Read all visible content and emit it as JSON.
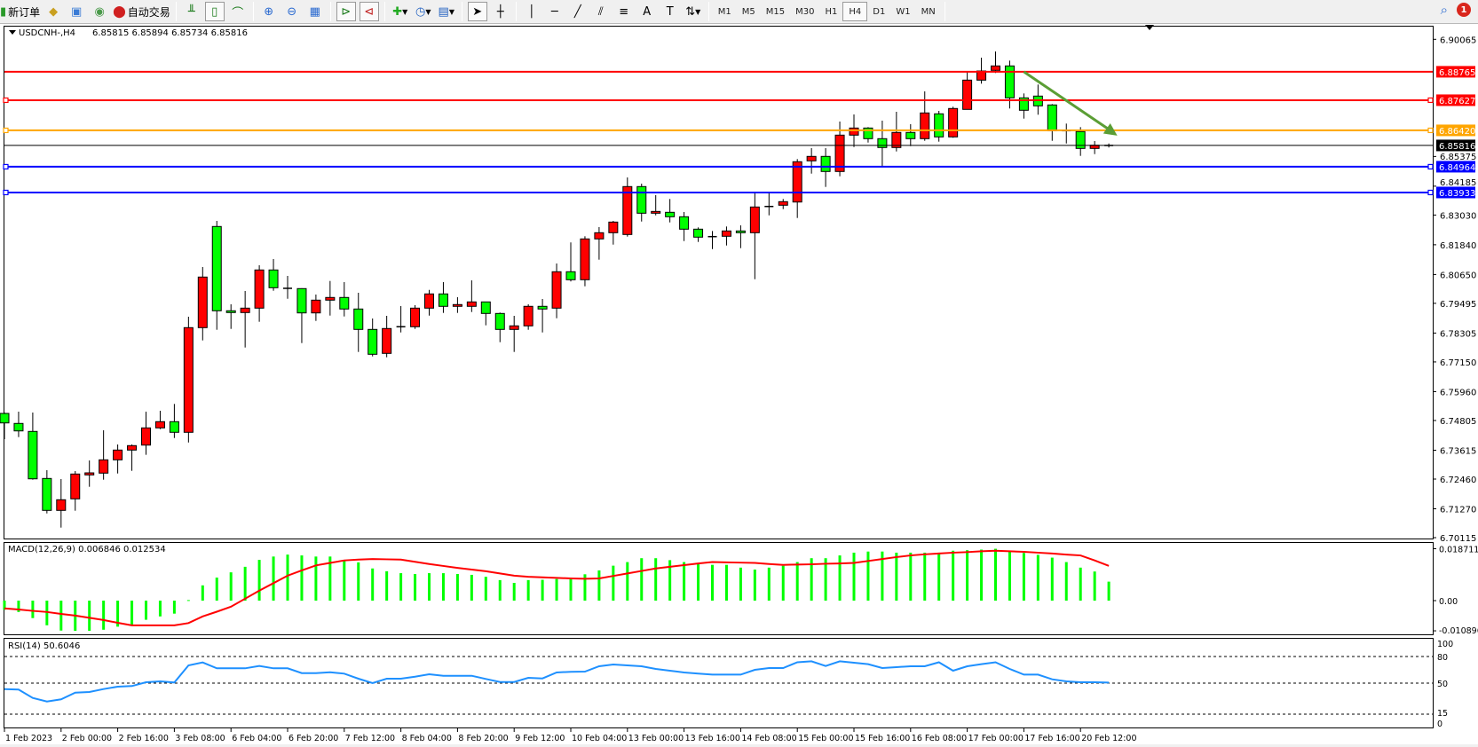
{
  "toolbar": {
    "new_order_label": "新订单",
    "auto_trading_label": "自动交易",
    "timeframes": [
      "M1",
      "M5",
      "M15",
      "M30",
      "H1",
      "H4",
      "D1",
      "W1",
      "MN"
    ],
    "active_timeframe": "H4",
    "notification_count": "1"
  },
  "chart_header": {
    "symbol": "USDCNH-,H4",
    "ohlc_text": "6.85815 6.85894 6.85734 6.85816"
  },
  "colors": {
    "bull_candle": "#ff0000",
    "bear_candle": "#00ff00",
    "macd_histogram": "#00ff00",
    "macd_signal": "#ff0000",
    "rsi_line": "#1e90ff",
    "trend_arrow": "#5b9e35"
  },
  "chart_data": [
    {
      "type": "candlestick",
      "title": "USDCNH-,H4",
      "ylim": [
        6.70115,
        6.90065
      ],
      "price_ticks": [
        "6.90065",
        "6.85375",
        "6.84185",
        "6.83030",
        "6.81840",
        "6.80650",
        "6.79495",
        "6.78305",
        "6.77150",
        "6.75960",
        "6.74805",
        "6.73615",
        "6.72460",
        "6.71270",
        "6.70115"
      ],
      "time_labels": [
        {
          "bar": 0,
          "label": "1 Feb 2023"
        },
        {
          "bar": 4,
          "label": "2 Feb 00:00"
        },
        {
          "bar": 8,
          "label": "2 Feb 16:00"
        },
        {
          "bar": 12,
          "label": "3 Feb 08:00"
        },
        {
          "bar": 16,
          "label": "6 Feb 04:00"
        },
        {
          "bar": 20,
          "label": "6 Feb 20:00"
        },
        {
          "bar": 24,
          "label": "7 Feb 12:00"
        },
        {
          "bar": 28,
          "label": "8 Feb 04:00"
        },
        {
          "bar": 32,
          "label": "8 Feb 20:00"
        },
        {
          "bar": 36,
          "label": "9 Feb 12:00"
        },
        {
          "bar": 40,
          "label": "10 Feb 04:00"
        },
        {
          "bar": 44,
          "label": "13 Feb 00:00"
        },
        {
          "bar": 48,
          "label": "13 Feb 16:00"
        },
        {
          "bar": 52,
          "label": "14 Feb 08:00"
        },
        {
          "bar": 56,
          "label": "15 Feb 00:00"
        },
        {
          "bar": 60,
          "label": "15 Feb 16:00"
        },
        {
          "bar": 64,
          "label": "16 Feb 08:00"
        },
        {
          "bar": 68,
          "label": "17 Feb 00:00"
        },
        {
          "bar": 72,
          "label": "17 Feb 16:00"
        },
        {
          "bar": 76,
          "label": "20 Feb 12:00"
        }
      ],
      "ohlc": [
        [
          6.75088,
          6.75124,
          6.74058,
          6.74708
        ],
        [
          6.74687,
          6.75159,
          6.7414,
          6.74388
        ],
        [
          6.74367,
          6.75124,
          6.72435,
          6.7247
        ],
        [
          6.72484,
          6.72815,
          6.71085,
          6.71206
        ],
        [
          6.71206,
          6.7246,
          6.70517,
          6.71632
        ],
        [
          6.71668,
          6.72779,
          6.71192,
          6.72662
        ],
        [
          6.72627,
          6.73205,
          6.72151,
          6.72708
        ],
        [
          6.72698,
          6.74413,
          6.72435,
          6.7323
        ],
        [
          6.7323,
          6.73845,
          6.72684,
          6.73621
        ],
        [
          6.73621,
          6.73845,
          6.7279,
          6.73799
        ],
        [
          6.7382,
          6.75159,
          6.7343,
          6.74509
        ],
        [
          6.74509,
          6.75195,
          6.74459,
          6.74758
        ],
        [
          6.74758,
          6.75468,
          6.74104,
          6.74332
        ],
        [
          6.74332,
          6.78959,
          6.73926,
          6.78522
        ],
        [
          6.78522,
          6.80948,
          6.78011,
          6.80547
        ],
        [
          6.82571,
          6.82795,
          6.78437,
          6.79197
        ],
        [
          6.79197,
          6.79456,
          6.78472,
          6.79126
        ],
        [
          6.79126,
          6.79989,
          6.77727,
          6.79303
        ],
        [
          6.79303,
          6.81019,
          6.78757,
          6.80831
        ],
        [
          6.80831,
          6.81268,
          6.79999,
          6.8012
        ],
        [
          6.80096,
          6.80593,
          6.7968,
          6.80096
        ],
        [
          6.80085,
          6.801,
          6.77904,
          6.79112
        ],
        [
          6.79112,
          6.79847,
          6.78792,
          6.79623
        ],
        [
          6.79623,
          6.80391,
          6.79005,
          6.7973
        ],
        [
          6.7973,
          6.80344,
          6.7897,
          6.79268
        ],
        [
          6.79268,
          6.79918,
          6.77549,
          6.78451
        ],
        [
          6.78451,
          6.78888,
          6.77371,
          6.77456
        ],
        [
          6.77492,
          6.78995,
          6.77336,
          6.78487
        ],
        [
          6.78558,
          6.79385,
          6.7833,
          6.78558
        ],
        [
          6.78558,
          6.79421,
          6.78472,
          6.79303
        ],
        [
          6.79303,
          6.80035,
          6.79005,
          6.79872
        ],
        [
          6.79872,
          6.80344,
          6.79112,
          6.79375
        ],
        [
          6.79375,
          6.7974,
          6.79112,
          6.79446
        ],
        [
          6.79375,
          6.80415,
          6.79147,
          6.79552
        ],
        [
          6.79552,
          6.79552,
          6.78615,
          6.7909
        ],
        [
          6.7909,
          6.79126,
          6.7794,
          6.78451
        ],
        [
          6.78451,
          6.78995,
          6.77549,
          6.78593
        ],
        [
          6.78593,
          6.79456,
          6.78437,
          6.79375
        ],
        [
          6.79375,
          6.79669,
          6.7833,
          6.79268
        ],
        [
          6.79303,
          6.8109,
          6.78898,
          6.8076
        ],
        [
          6.8076,
          6.81932,
          6.80369,
          6.8044
        ],
        [
          6.8044,
          6.8218,
          6.80178,
          6.82074
        ],
        [
          6.82074,
          6.82546,
          6.81243,
          6.82322
        ],
        [
          6.82322,
          6.82795,
          6.81846,
          6.82748
        ],
        [
          6.82251,
          6.84535,
          6.82166,
          6.84169
        ],
        [
          6.84169,
          6.84286,
          6.8277,
          6.83103
        ],
        [
          6.83103,
          6.83825,
          6.83018,
          6.83174
        ],
        [
          6.83139,
          6.83672,
          6.82735,
          6.82961
        ],
        [
          6.82961,
          6.8315,
          6.81988,
          6.82464
        ],
        [
          6.82464,
          6.82535,
          6.81953,
          6.82145
        ],
        [
          6.82166,
          6.82393,
          6.81669,
          6.82166
        ],
        [
          6.8218,
          6.82571,
          6.81811,
          6.82393
        ],
        [
          6.82393,
          6.82617,
          6.81704,
          6.82322
        ],
        [
          6.82322,
          6.83931,
          6.80461,
          6.83352
        ],
        [
          6.83373,
          6.83931,
          6.83018,
          6.83373
        ],
        [
          6.83423,
          6.83672,
          6.83267,
          6.83565
        ],
        [
          6.83551,
          6.8527,
          6.82912,
          6.85164
        ],
        [
          6.85199,
          6.85707,
          6.84688,
          6.85377
        ],
        [
          6.85377,
          6.85707,
          6.84155,
          6.84773
        ],
        [
          6.84773,
          6.86773,
          6.84581,
          6.86229
        ],
        [
          6.86229,
          6.87057,
          6.85753,
          6.86513
        ],
        [
          6.86513,
          6.86549,
          6.85931,
          6.86087
        ],
        [
          6.86087,
          6.86808,
          6.84951,
          6.85732
        ],
        [
          6.85732,
          6.87163,
          6.85576,
          6.86336
        ],
        [
          6.86336,
          6.86666,
          6.85789,
          6.86087
        ],
        [
          6.86087,
          6.8798,
          6.86002,
          6.87117
        ],
        [
          6.87082,
          6.87199,
          6.85967,
          6.86158
        ],
        [
          6.86158,
          6.87366,
          6.86123,
          6.87295
        ],
        [
          6.87259,
          6.88797,
          6.87259,
          6.88431
        ],
        [
          6.88431,
          6.8933,
          6.88289,
          6.88797
        ],
        [
          6.88822,
          6.89578,
          6.88715,
          6.88999
        ],
        [
          6.88999,
          6.89212,
          6.87295,
          6.87721
        ],
        [
          6.87721,
          6.87898,
          6.8689,
          6.87224
        ],
        [
          6.87792,
          6.88254,
          6.87046,
          6.87401
        ],
        [
          6.87437,
          6.87472,
          6.86002,
          6.86407
        ],
        [
          6.86407,
          6.86691,
          6.85895,
          6.86407
        ],
        [
          6.86371,
          6.86549,
          6.85398,
          6.85696
        ],
        [
          6.85696,
          6.85991,
          6.85469,
          6.85824
        ],
        [
          6.85815,
          6.85894,
          6.85734,
          6.85816
        ]
      ],
      "horizontal_lines": [
        {
          "price": "6.88765",
          "color": "#ff0000"
        },
        {
          "price": "6.87627",
          "color": "#ff0000"
        },
        {
          "price": "6.86420",
          "color": "#ffa500"
        },
        {
          "price": "6.85816",
          "color": "#000000"
        },
        {
          "price": "6.84964",
          "color": "#0000ff"
        },
        {
          "price": "6.83933",
          "color": "#0000ff"
        }
      ],
      "trend_arrow": {
        "from": {
          "bar": 72,
          "price": 6.88765
        },
        "to": {
          "bar": 78.6,
          "price": 6.8621
        }
      }
    },
    {
      "type": "bar+line",
      "title": "MACD(12,26,9) 0.006846 0.012534",
      "ylim": [
        -0.010896,
        0.018711
      ],
      "ticks": [
        "0.018711",
        "0.00",
        "-0.010896"
      ],
      "histogram": [
        -0.0033,
        -0.0041,
        -0.0063,
        -0.0089,
        -0.0108,
        -0.0109,
        -0.0109,
        -0.0105,
        -0.0094,
        -0.0089,
        -0.0069,
        -0.0057,
        -0.0047,
        0.0002,
        0.0055,
        0.0083,
        0.0102,
        0.0122,
        0.0147,
        0.0159,
        0.0166,
        0.0163,
        0.0159,
        0.0159,
        0.0147,
        0.0138,
        0.0116,
        0.0106,
        0.0099,
        0.0096,
        0.0099,
        0.0099,
        0.0096,
        0.0093,
        0.0086,
        0.0074,
        0.0064,
        0.0074,
        0.0075,
        0.0078,
        0.0078,
        0.0095,
        0.0109,
        0.0126,
        0.0139,
        0.0153,
        0.0153,
        0.0146,
        0.0139,
        0.0136,
        0.0129,
        0.0129,
        0.0119,
        0.0112,
        0.0119,
        0.0126,
        0.0139,
        0.0153,
        0.0153,
        0.0163,
        0.0173,
        0.0177,
        0.0177,
        0.0173,
        0.0173,
        0.0173,
        0.0173,
        0.018,
        0.0182,
        0.0184,
        0.0187,
        0.018,
        0.0172,
        0.0165,
        0.0155,
        0.0139,
        0.0119,
        0.0105,
        0.006846
      ],
      "signal": [
        -0.0028,
        -0.0032,
        -0.0037,
        -0.0041,
        -0.0048,
        -0.0054,
        -0.0062,
        -0.007,
        -0.008,
        -0.0089,
        -0.0089,
        -0.0089,
        -0.0089,
        -0.0081,
        -0.0057,
        -0.004,
        -0.0022,
        0.0007,
        0.0036,
        0.0063,
        0.009,
        0.0109,
        0.0127,
        0.0136,
        0.0145,
        0.0148,
        0.015,
        0.0149,
        0.0148,
        0.014,
        0.0132,
        0.0125,
        0.0118,
        0.0112,
        0.0106,
        0.0098,
        0.009,
        0.0086,
        0.0084,
        0.0082,
        0.008,
        0.0079,
        0.008,
        0.0089,
        0.0098,
        0.0107,
        0.0116,
        0.0122,
        0.0128,
        0.0134,
        0.0139,
        0.0138,
        0.0137,
        0.0136,
        0.0132,
        0.0129,
        0.013,
        0.0131,
        0.0133,
        0.0134,
        0.0136,
        0.0143,
        0.015,
        0.0157,
        0.0163,
        0.0167,
        0.017,
        0.0173,
        0.0175,
        0.0178,
        0.018,
        0.0178,
        0.0176,
        0.0173,
        0.017,
        0.0166,
        0.0163,
        0.0145,
        0.012534
      ]
    },
    {
      "type": "line",
      "title": "RSI(14) 50.6046",
      "ylim": [
        0,
        100
      ],
      "ticks": [
        "100",
        "80",
        "50",
        "15",
        "0"
      ],
      "levels": [
        80,
        50,
        15
      ],
      "values": [
        43.3,
        42.7,
        33.3,
        29.3,
        31.7,
        39.3,
        40,
        43.3,
        46,
        46.7,
        51,
        52,
        50.7,
        70,
        73.3,
        66.7,
        66.7,
        66.7,
        69.3,
        66.7,
        66.7,
        61.3,
        61.3,
        62.3,
        60.7,
        55,
        50,
        55,
        55,
        57.3,
        60,
        58.3,
        58.3,
        58.3,
        54.7,
        51.3,
        51.3,
        56,
        55.3,
        62,
        62.8,
        63,
        69,
        71,
        70,
        69,
        66,
        64,
        62,
        60.7,
        59.6,
        59.6,
        59.6,
        65,
        67,
        67,
        73.5,
        74.6,
        69.3,
        74.6,
        73,
        71.4,
        67,
        68,
        69,
        69,
        73.5,
        64,
        69,
        71.4,
        73.5,
        66,
        59.6,
        59.6,
        54.3,
        52,
        51,
        51,
        50.6046
      ]
    }
  ]
}
